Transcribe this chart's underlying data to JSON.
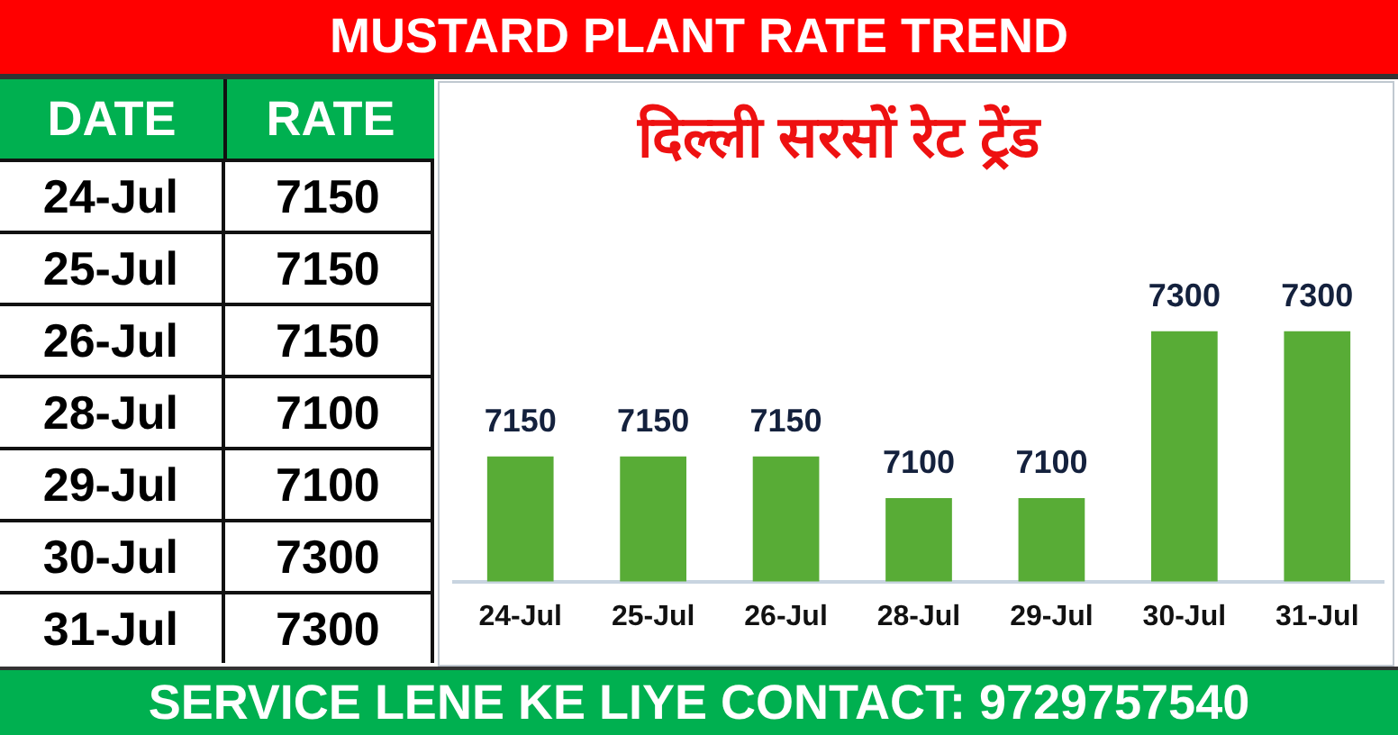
{
  "chart_data": [
    {
      "type": "other",
      "annotations": [
        "DATE",
        "RATE"
      ],
      "categories": [
        "24-Jul",
        "25-Jul",
        "26-Jul",
        "28-Jul",
        "29-Jul",
        "30-Jul",
        "31-Jul"
      ],
      "values": [
        7150,
        7150,
        7150,
        7100,
        7100,
        7300,
        7300
      ],
      "data_labels": true
    },
    {
      "type": "bar",
      "title": "MUSTARD PLANT RATE TREND",
      "subtitle": "दिल्ली सरसों रेट ट्रेंड",
      "categories": [
        "24-Jul",
        "25-Jul",
        "26-Jul",
        "28-Jul",
        "29-Jul",
        "30-Jul",
        "31-Jul"
      ],
      "values": [
        7150,
        7150,
        7150,
        7100,
        7100,
        7300,
        7300
      ],
      "color": "#58ac36",
      "ylim": [
        7000,
        7600
      ],
      "data_labels": true,
      "tick_labels": "x",
      "annotations": [
        "SERVICE LENE KE LIYE CONTACT: 9729757540"
      ]
    }
  ]
}
